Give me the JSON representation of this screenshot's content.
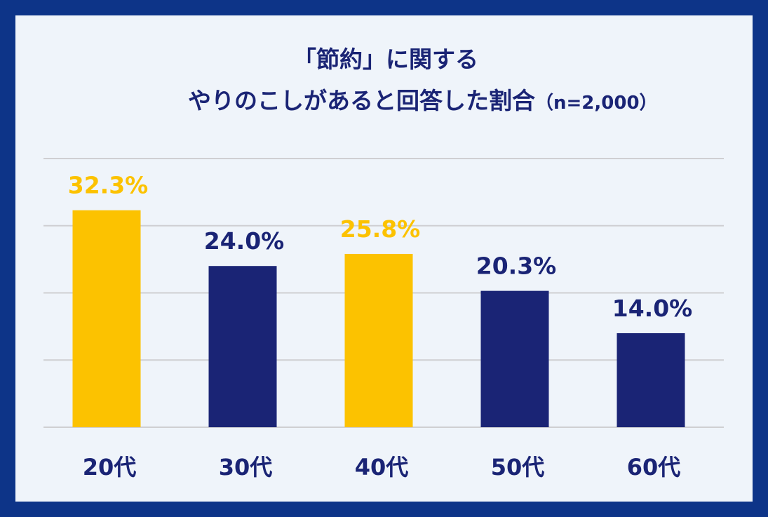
{
  "title": {
    "line1": "「節約」に関する",
    "line2": "やりのこしがあると回答した割合",
    "sample": "（n=2,000）"
  },
  "chart_data": {
    "type": "bar",
    "title": "「節約」に関する やりのこしがあると回答した割合（n=2,000）",
    "categories": [
      "20代",
      "30代",
      "40代",
      "50代",
      "60代"
    ],
    "values": [
      32.3,
      24.0,
      25.8,
      20.3,
      14.0
    ],
    "labels": [
      "32.3%",
      "24.0%",
      "25.8%",
      "20.3%",
      "14.0%"
    ],
    "highlight": [
      true,
      false,
      true,
      false,
      false
    ],
    "ylim": [
      0,
      40
    ],
    "grid": true,
    "xlabel": "",
    "ylabel": "",
    "colors": {
      "highlight": "#fcc200",
      "normal": "#1a2475",
      "grid": "#cfcfd2"
    }
  }
}
